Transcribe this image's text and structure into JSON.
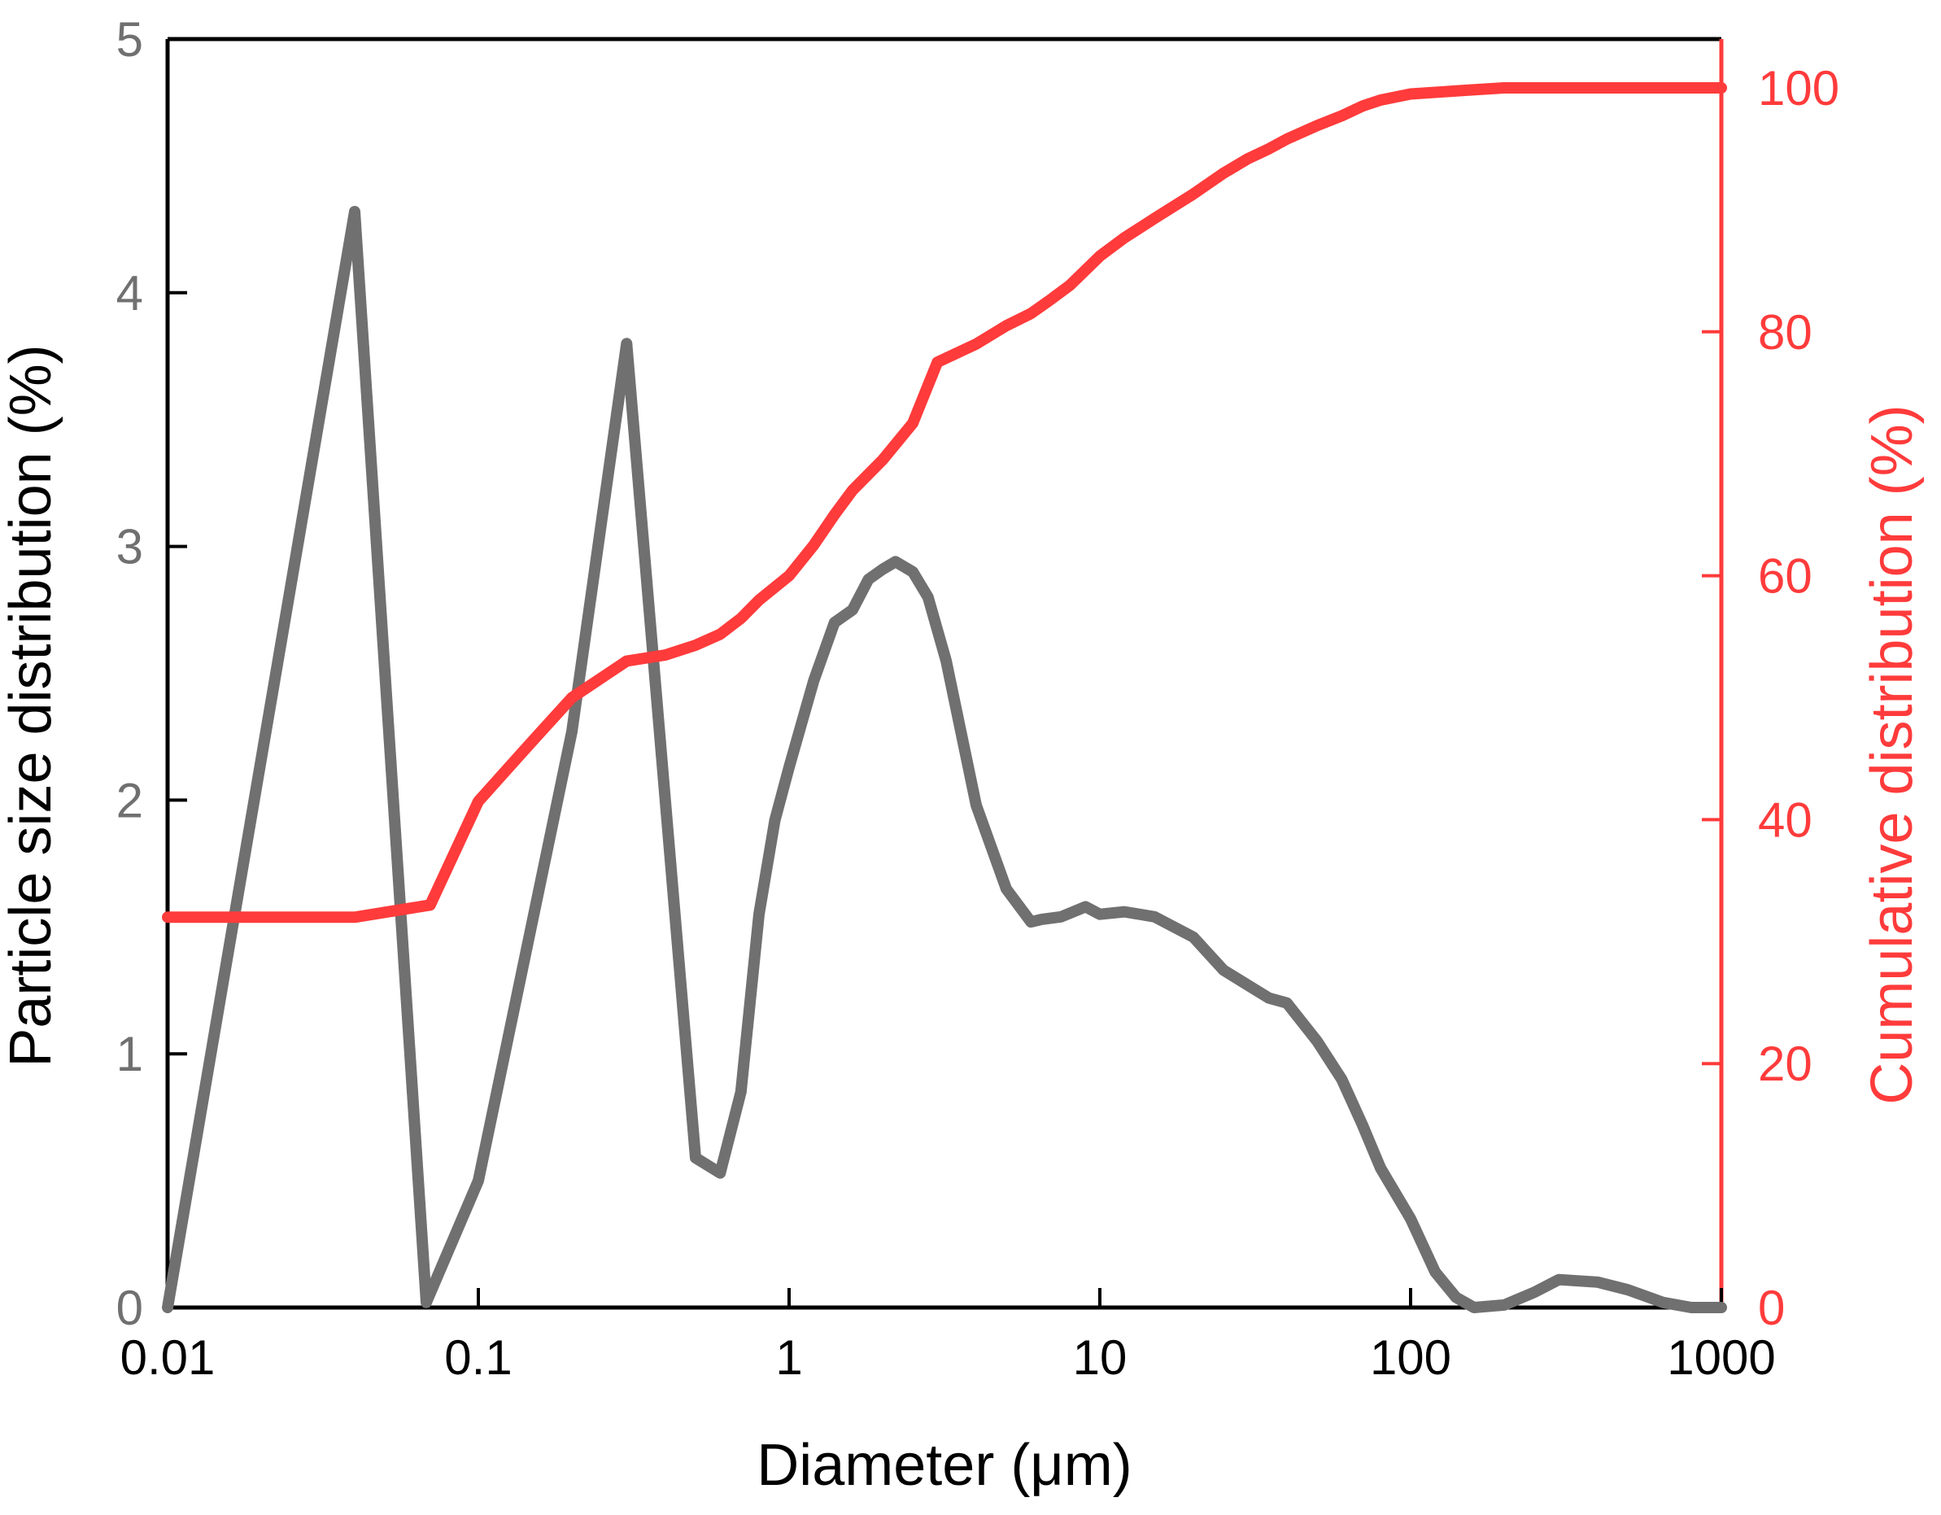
{
  "chart_data": {
    "type": "line",
    "xlabel": "Diameter (μm)",
    "ylabel": "Particle size distribution (%)",
    "y2label": "Cumulative distribution (%)",
    "xscale": "log",
    "xlim": [
      0.01,
      1000
    ],
    "ylim": [
      0,
      5
    ],
    "y2lim": [
      0,
      104
    ],
    "xticks": [
      0.01,
      0.1,
      1,
      10,
      100,
      1000
    ],
    "xtick_labels": [
      "0.01",
      "0.1",
      "1",
      "10",
      "100",
      "1000"
    ],
    "yticks": [
      0,
      1,
      2,
      3,
      4,
      5
    ],
    "ytick_labels": [
      "0",
      "1",
      "2",
      "3",
      "4",
      "5"
    ],
    "y2ticks": [
      0,
      20,
      40,
      60,
      80,
      100
    ],
    "y2tick_labels": [
      "0",
      "20",
      "40",
      "60",
      "80",
      "100"
    ],
    "grid": false,
    "colors": {
      "distribution": "#707070",
      "cumulative": "#ff3b3b",
      "axis_left": "#000000",
      "axis_right": "#ff3b3b",
      "ytick_left": "#707070"
    },
    "series": [
      {
        "axis": "left",
        "color": "#707070",
        "points": [
          [
            0.01,
            0.0
          ],
          [
            0.04,
            4.32
          ],
          [
            0.068,
            0.02
          ],
          [
            0.1,
            0.5
          ],
          [
            0.2,
            2.27
          ],
          [
            0.3,
            3.8
          ],
          [
            0.5,
            0.59
          ],
          [
            0.6,
            0.53
          ],
          [
            0.7,
            0.85
          ],
          [
            0.8,
            1.55
          ],
          [
            0.9,
            1.92
          ],
          [
            1.0,
            2.13
          ],
          [
            1.2,
            2.47
          ],
          [
            1.4,
            2.7
          ],
          [
            1.6,
            2.75
          ],
          [
            1.8,
            2.87
          ],
          [
            2.0,
            2.91
          ],
          [
            2.2,
            2.94
          ],
          [
            2.5,
            2.9
          ],
          [
            2.8,
            2.8
          ],
          [
            3.2,
            2.55
          ],
          [
            4.0,
            1.98
          ],
          [
            5.0,
            1.65
          ],
          [
            6.0,
            1.52
          ],
          [
            6.5,
            1.53
          ],
          [
            7.5,
            1.54
          ],
          [
            9.0,
            1.58
          ],
          [
            10.0,
            1.55
          ],
          [
            12.0,
            1.56
          ],
          [
            15.0,
            1.54
          ],
          [
            20.0,
            1.46
          ],
          [
            25.0,
            1.33
          ],
          [
            30.0,
            1.27
          ],
          [
            35.0,
            1.22
          ],
          [
            40.0,
            1.2
          ],
          [
            50.0,
            1.05
          ],
          [
            60.0,
            0.9
          ],
          [
            70.0,
            0.72
          ],
          [
            80.0,
            0.55
          ],
          [
            100.0,
            0.35
          ],
          [
            120.0,
            0.14
          ],
          [
            140.0,
            0.04
          ],
          [
            160.0,
            0.0
          ],
          [
            200.0,
            0.01
          ],
          [
            250.0,
            0.06
          ],
          [
            300.0,
            0.11
          ],
          [
            400.0,
            0.1
          ],
          [
            500.0,
            0.07
          ],
          [
            650.0,
            0.02
          ],
          [
            800.0,
            0.0
          ],
          [
            1000.0,
            0.0
          ]
        ]
      },
      {
        "axis": "right",
        "color": "#ff3b3b",
        "points": [
          [
            0.01,
            32.0
          ],
          [
            0.02,
            32.0
          ],
          [
            0.04,
            32.0
          ],
          [
            0.05,
            32.4
          ],
          [
            0.07,
            33.0
          ],
          [
            0.1,
            41.5
          ],
          [
            0.15,
            46.5
          ],
          [
            0.2,
            50.0
          ],
          [
            0.3,
            53.0
          ],
          [
            0.4,
            53.5
          ],
          [
            0.5,
            54.3
          ],
          [
            0.6,
            55.2
          ],
          [
            0.7,
            56.5
          ],
          [
            0.8,
            58.0
          ],
          [
            1.0,
            60.0
          ],
          [
            1.2,
            62.5
          ],
          [
            1.4,
            65.0
          ],
          [
            1.6,
            67.0
          ],
          [
            2.0,
            69.5
          ],
          [
            2.5,
            72.5
          ],
          [
            3.0,
            77.5
          ],
          [
            4.0,
            79.0
          ],
          [
            5.0,
            80.5
          ],
          [
            6.0,
            81.5
          ],
          [
            7.0,
            82.7
          ],
          [
            8.0,
            83.8
          ],
          [
            10.0,
            86.2
          ],
          [
            12.0,
            87.7
          ],
          [
            15.0,
            89.3
          ],
          [
            20.0,
            91.3
          ],
          [
            25.0,
            93.0
          ],
          [
            30.0,
            94.2
          ],
          [
            35.0,
            95.0
          ],
          [
            40.0,
            95.8
          ],
          [
            50.0,
            96.9
          ],
          [
            60.0,
            97.7
          ],
          [
            70.0,
            98.5
          ],
          [
            80.0,
            99.0
          ],
          [
            100.0,
            99.5
          ],
          [
            150.0,
            99.8
          ],
          [
            200.0,
            100.0
          ],
          [
            300.0,
            100.0
          ],
          [
            1000.0,
            100.0
          ]
        ]
      }
    ]
  }
}
